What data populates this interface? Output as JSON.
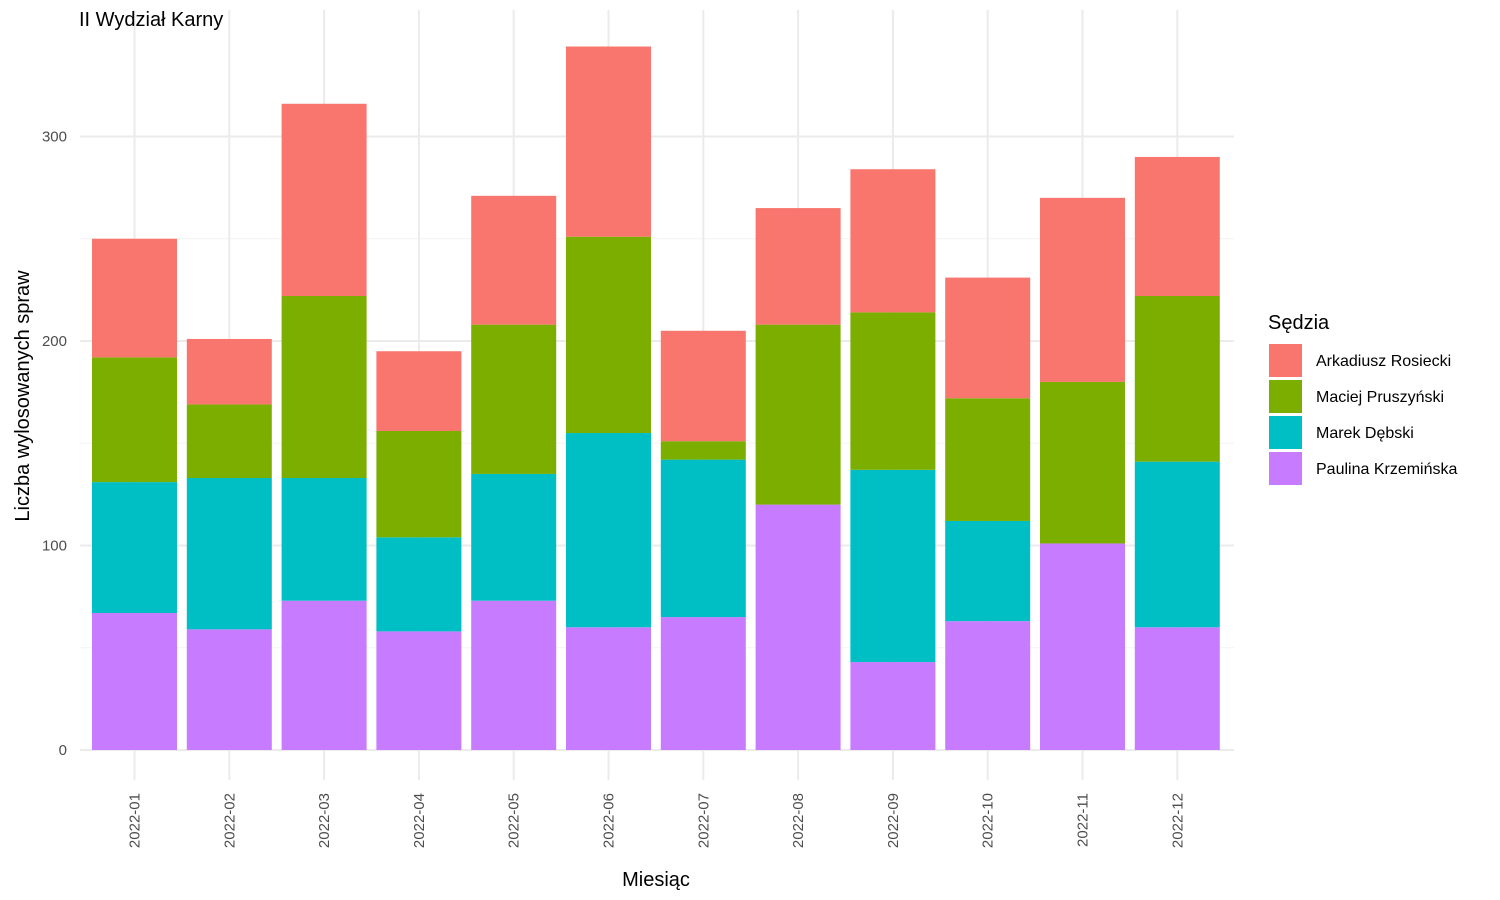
{
  "chart_data": {
    "type": "bar",
    "stacked": true,
    "title": "II Wydział Karny",
    "xlabel": "Miesiąc",
    "ylabel": "Liczba wylosowanych spraw",
    "ylim": [
      0,
      345
    ],
    "yticks": [
      0,
      100,
      200,
      300
    ],
    "grid": true,
    "legend": {
      "title": "Sędzia",
      "position": "right"
    },
    "categories": [
      "2022-01",
      "2022-02",
      "2022-03",
      "2022-04",
      "2022-05",
      "2022-06",
      "2022-07",
      "2022-08",
      "2022-09",
      "2022-10",
      "2022-11",
      "2022-12"
    ],
    "series": [
      {
        "name": "Arkadiusz Rosiecki",
        "color": "#F8766D",
        "values": [
          58,
          32,
          94,
          39,
          63,
          93,
          54,
          57,
          70,
          59,
          90,
          68
        ]
      },
      {
        "name": "Maciej Pruszyński",
        "color": "#7CAE00",
        "values": [
          61,
          36,
          89,
          52,
          73,
          96,
          9,
          88,
          77,
          60,
          79,
          81
        ]
      },
      {
        "name": "Marek Dębski",
        "color": "#00BFC4",
        "values": [
          64,
          74,
          60,
          46,
          62,
          95,
          77,
          0,
          94,
          49,
          0,
          81
        ]
      },
      {
        "name": "Paulina Krzemińska",
        "color": "#C77CFF",
        "values": [
          67,
          59,
          73,
          58,
          73,
          60,
          65,
          120,
          43,
          63,
          101,
          60
        ]
      }
    ]
  }
}
